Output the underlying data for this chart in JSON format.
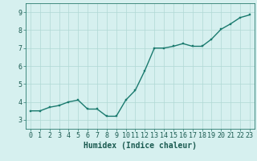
{
  "x": [
    0,
    1,
    2,
    3,
    4,
    5,
    6,
    7,
    8,
    9,
    10,
    11,
    12,
    13,
    14,
    15,
    16,
    17,
    18,
    19,
    20,
    21,
    22,
    23
  ],
  "y": [
    3.5,
    3.5,
    3.7,
    3.8,
    4.0,
    4.1,
    3.6,
    3.6,
    3.2,
    3.2,
    4.1,
    4.65,
    5.75,
    7.0,
    7.0,
    7.1,
    7.25,
    7.1,
    7.1,
    7.5,
    8.05,
    8.35,
    8.7,
    8.85
  ],
  "line_color": "#1a7a6e",
  "marker_color": "#1a7a6e",
  "bg_color": "#d6f0ef",
  "grid_color": "#b0d8d4",
  "xlabel": "Humidex (Indice chaleur)",
  "ylim": [
    2.5,
    9.5
  ],
  "xlim": [
    -0.5,
    23.5
  ],
  "yticks": [
    3,
    4,
    5,
    6,
    7,
    8,
    9
  ],
  "xticks": [
    0,
    1,
    2,
    3,
    4,
    5,
    6,
    7,
    8,
    9,
    10,
    11,
    12,
    13,
    14,
    15,
    16,
    17,
    18,
    19,
    20,
    21,
    22,
    23
  ],
  "xlabel_fontsize": 7,
  "tick_fontsize": 6,
  "line_width": 1.0,
  "marker_size": 2.0
}
